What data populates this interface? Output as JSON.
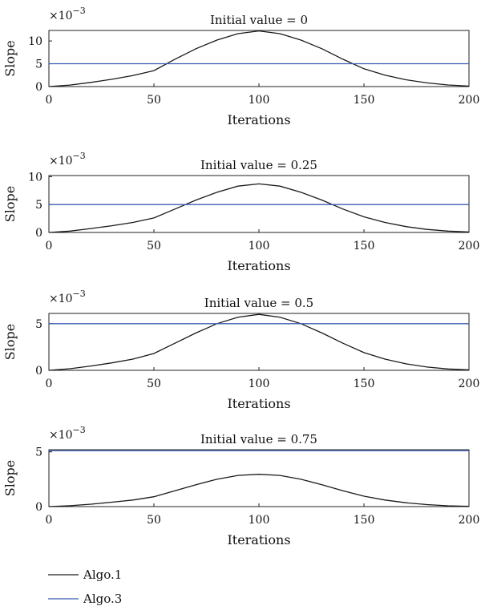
{
  "chart_data": [
    {
      "type": "line",
      "title": "Initial value = 0",
      "xlabel": "Iterations",
      "ylabel": "Slope",
      "multiplier": "×10",
      "multiplier_exp": "−3",
      "xlim": [
        0,
        200
      ],
      "ylim": [
        0,
        12.3
      ],
      "xticks": [
        0,
        50,
        100,
        150,
        200
      ],
      "yticks": [
        0,
        5,
        10
      ],
      "series": [
        {
          "name": "Algo.1",
          "color": "#1a1a1a",
          "x": [
            0,
            10,
            20,
            30,
            40,
            50,
            60,
            70,
            80,
            90,
            100,
            110,
            120,
            130,
            140,
            150,
            160,
            170,
            180,
            190,
            200
          ],
          "y": [
            0,
            0.33,
            0.92,
            1.6,
            2.4,
            3.5,
            6.0,
            8.3,
            10.2,
            11.6,
            12.2,
            11.6,
            10.2,
            8.3,
            6.0,
            3.9,
            2.5,
            1.5,
            0.8,
            0.35,
            0.1
          ]
        },
        {
          "name": "Algo.3",
          "color": "#3b5bb5",
          "x": [
            0,
            200
          ],
          "y": [
            5,
            5
          ]
        }
      ]
    },
    {
      "type": "line",
      "title": "Initial value = 0.25",
      "xlabel": "Iterations",
      "ylabel": "Slope",
      "multiplier": "×10",
      "multiplier_exp": "−3",
      "xlim": [
        0,
        200
      ],
      "ylim": [
        0,
        10.2
      ],
      "xticks": [
        0,
        50,
        100,
        150,
        200
      ],
      "yticks": [
        0,
        5,
        10
      ],
      "series": [
        {
          "name": "Algo.1",
          "color": "#1a1a1a",
          "x": [
            0,
            10,
            20,
            30,
            40,
            50,
            60,
            70,
            80,
            90,
            100,
            110,
            120,
            130,
            140,
            150,
            160,
            170,
            180,
            190,
            200
          ],
          "y": [
            0,
            0.25,
            0.7,
            1.2,
            1.8,
            2.6,
            4.2,
            5.8,
            7.2,
            8.3,
            8.7,
            8.3,
            7.2,
            5.8,
            4.2,
            2.8,
            1.8,
            1.05,
            0.55,
            0.25,
            0.08
          ]
        },
        {
          "name": "Algo.3",
          "color": "#3b5bb5",
          "x": [
            0,
            200
          ],
          "y": [
            5,
            5
          ]
        }
      ]
    },
    {
      "type": "line",
      "title": "Initial value = 0.5",
      "xlabel": "Iterations",
      "ylabel": "Slope",
      "multiplier": "×10",
      "multiplier_exp": "−3",
      "xlim": [
        0,
        200
      ],
      "ylim": [
        0,
        6.1
      ],
      "xticks": [
        0,
        50,
        100,
        150,
        200
      ],
      "yticks": [
        0,
        5
      ],
      "series": [
        {
          "name": "Algo.1",
          "color": "#1a1a1a",
          "x": [
            0,
            10,
            20,
            30,
            40,
            50,
            60,
            70,
            80,
            90,
            100,
            110,
            120,
            130,
            140,
            150,
            160,
            170,
            180,
            190,
            200
          ],
          "y": [
            0,
            0.17,
            0.46,
            0.8,
            1.2,
            1.8,
            2.9,
            4.0,
            5.0,
            5.7,
            6.0,
            5.7,
            5.0,
            4.0,
            2.9,
            1.9,
            1.2,
            0.7,
            0.35,
            0.15,
            0.05
          ]
        },
        {
          "name": "Algo.3",
          "color": "#3b5bb5",
          "x": [
            0,
            200
          ],
          "y": [
            5,
            5
          ]
        }
      ]
    },
    {
      "type": "line",
      "title": "Initial value = 0.75",
      "xlabel": "Iterations",
      "ylabel": "Slope",
      "multiplier": "×10",
      "multiplier_exp": "−3",
      "xlim": [
        0,
        200
      ],
      "ylim": [
        0,
        5.2
      ],
      "xticks": [
        0,
        50,
        100,
        150,
        200
      ],
      "yticks": [
        0,
        5
      ],
      "series": [
        {
          "name": "Algo.1",
          "color": "#1a1a1a",
          "x": [
            0,
            10,
            20,
            30,
            40,
            50,
            60,
            70,
            80,
            90,
            100,
            110,
            120,
            130,
            140,
            150,
            160,
            170,
            180,
            190,
            200
          ],
          "y": [
            0,
            0.08,
            0.22,
            0.4,
            0.6,
            0.9,
            1.45,
            2.0,
            2.5,
            2.85,
            2.95,
            2.85,
            2.5,
            2.0,
            1.45,
            0.95,
            0.6,
            0.35,
            0.18,
            0.07,
            0.02
          ]
        },
        {
          "name": "Algo.3",
          "color": "#3b5bb5",
          "x": [
            0,
            200
          ],
          "y": [
            5.1,
            5.1
          ]
        }
      ]
    }
  ],
  "legend": {
    "items": [
      {
        "label": "Algo.1",
        "color": "#1a1a1a"
      },
      {
        "label": "Algo.3",
        "color": "#3b5bb5"
      }
    ]
  }
}
